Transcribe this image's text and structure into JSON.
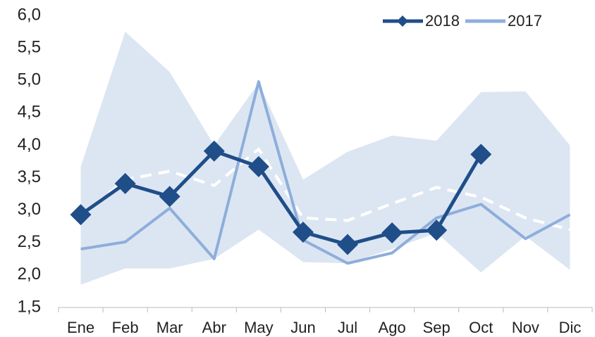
{
  "chart_data": {
    "type": "line",
    "categories": [
      "Ene",
      "Feb",
      "Mar",
      "Abr",
      "May",
      "Jun",
      "Jul",
      "Ago",
      "Sep",
      "Oct",
      "Nov",
      "Dic"
    ],
    "series": [
      {
        "name": "2018",
        "color": "#1f4e89",
        "marker": "diamond",
        "values": [
          2.93,
          3.41,
          3.21,
          3.91,
          3.67,
          2.66,
          2.47,
          2.65,
          2.69,
          3.86,
          null,
          null
        ]
      },
      {
        "name": "2017",
        "color": "#8eaedb",
        "values": [
          2.4,
          2.51,
          3.03,
          2.25,
          4.98,
          2.54,
          2.18,
          2.34,
          2.88,
          3.09,
          2.56,
          2.93
        ]
      }
    ],
    "band": {
      "color": "#dce6f2",
      "upper": [
        3.67,
        5.75,
        5.13,
        4.0,
        4.96,
        3.47,
        3.9,
        4.15,
        4.07,
        4.82,
        4.83,
        4.0
      ],
      "lower": [
        1.85,
        2.1,
        2.1,
        2.25,
        2.7,
        2.2,
        2.18,
        2.4,
        2.65,
        2.04,
        2.6,
        2.08
      ]
    },
    "average": {
      "color": "#ffffff",
      "dashed": true,
      "values": [
        2.9,
        3.47,
        3.6,
        3.38,
        3.94,
        2.88,
        2.84,
        3.1,
        3.35,
        3.2,
        2.88,
        2.7
      ]
    },
    "ylim": [
      1.5,
      6
    ],
    "yticks": [
      {
        "value": 1.5,
        "label": "1,5"
      },
      {
        "value": 2,
        "label": "2,0"
      },
      {
        "value": 2.5,
        "label": "2,5"
      },
      {
        "value": 3,
        "label": "3,0"
      },
      {
        "value": 3.5,
        "label": "3,5"
      },
      {
        "value": 4,
        "label": "4,0"
      },
      {
        "value": 4.5,
        "label": "4,5"
      },
      {
        "value": 5,
        "label": "5,0"
      },
      {
        "value": 5.5,
        "label": "5,5"
      },
      {
        "value": 6,
        "label": "6,0"
      }
    ],
    "grid": false,
    "legend": "top-right"
  }
}
